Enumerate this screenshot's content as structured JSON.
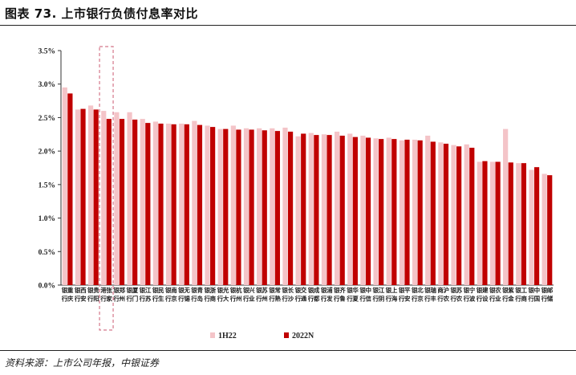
{
  "title": "图表 73.  上市银行负债付息率对比",
  "source": "资料来源：上市公司年报，中银证券",
  "chart_data": {
    "type": "bar",
    "categories": [
      "重庆银行",
      "西安银行",
      "贵阳银行",
      "张家港行",
      "郑州银行",
      "厦门银行",
      "江苏银行",
      "民生银行",
      "南京银行",
      "无锡银行",
      "青岛银行",
      "浙商银行",
      "光大银行",
      "杭州银行",
      "兴业银行",
      "苏州银行",
      "常熟银行",
      "长沙银行",
      "交通银行",
      "成都银行",
      "浦发银行",
      "齐鲁银行",
      "华夏银行",
      "中信银行",
      "江阴银行",
      "上海银行",
      "平安银行",
      "北京银行",
      "瑞丰银行",
      "沪农商行",
      "苏农银行",
      "宁波银行",
      "建设银行",
      "农业银行",
      "紫金银行",
      "工商银行",
      "中国银行",
      "邮储银行"
    ],
    "series": [
      {
        "name": "1H22",
        "color": "#f4c4c8",
        "values": [
          2.95,
          2.62,
          2.68,
          2.6,
          2.58,
          2.58,
          2.48,
          2.44,
          2.41,
          2.41,
          2.45,
          2.38,
          2.33,
          2.38,
          2.34,
          2.34,
          2.34,
          2.35,
          2.22,
          2.27,
          2.25,
          2.29,
          2.26,
          2.23,
          2.19,
          2.2,
          2.16,
          2.17,
          2.23,
          2.13,
          2.09,
          2.1,
          1.84,
          1.84,
          2.33,
          1.82,
          1.72,
          1.66
        ]
      },
      {
        "name": "2022N",
        "color": "#c00000",
        "values": [
          2.86,
          2.63,
          2.62,
          2.48,
          2.48,
          2.47,
          2.42,
          2.41,
          2.4,
          2.4,
          2.39,
          2.36,
          2.33,
          2.32,
          2.32,
          2.31,
          2.3,
          2.29,
          2.26,
          2.24,
          2.24,
          2.23,
          2.21,
          2.2,
          2.18,
          2.18,
          2.17,
          2.16,
          2.14,
          2.11,
          2.07,
          2.05,
          1.85,
          1.84,
          1.83,
          1.82,
          1.76,
          1.64
        ]
      }
    ],
    "y_ticks": [
      "3.5%",
      "3.0%",
      "2.5%",
      "2.0%",
      "1.5%",
      "1.0%",
      "0.5%",
      "0.0%"
    ],
    "ylim": [
      0,
      3.5
    ],
    "highlight_category": "张家港行",
    "legend_position": "bottom-center",
    "grid": false
  }
}
